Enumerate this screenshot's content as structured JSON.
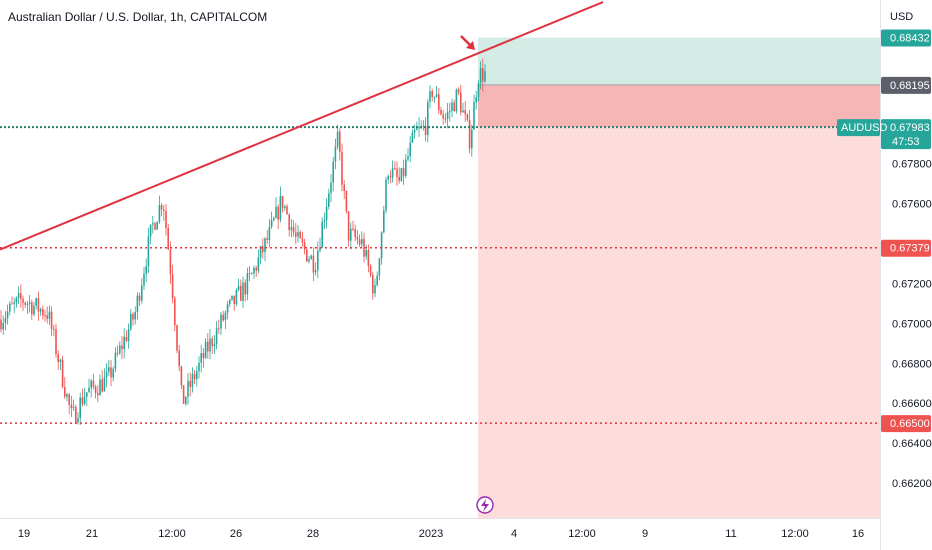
{
  "header": {
    "title": "Australian Dollar / U.S. Dollar, 1h, CAPITALCOM"
  },
  "colors": {
    "up": "#26a69a",
    "down": "#ef5350",
    "trendline": "#e0323f",
    "dotted_level": "#e0323f",
    "current_price_line": "#26806f",
    "profit_zone": "#d3ede6",
    "stop_zone": "#f7b6b6",
    "loss_zone": "#fddcdc",
    "flash_icon": "#9c27b0"
  },
  "chart_data": {
    "type": "candlestick",
    "currency_label": "USD",
    "symbol": "AUDUSD",
    "y_ticks": [
      "0.67800",
      "0.67600",
      "0.67200",
      "0.67000",
      "0.66800",
      "0.66600",
      "0.66400",
      "0.66200"
    ],
    "ylim": [
      0.6608,
      0.6853
    ],
    "x_ticks": [
      "19",
      "21",
      "12:00",
      "26",
      "28",
      "2023",
      "4",
      "12:00",
      "9",
      "11",
      "12:00",
      "16"
    ],
    "price_tags": [
      {
        "name": "target",
        "value": "0.68432",
        "color": "#26a69a"
      },
      {
        "name": "entry",
        "value": "0.68195",
        "color": "#5d606b"
      },
      {
        "name": "current",
        "value": "0.67983",
        "color": "#26a69a"
      },
      {
        "name": "level-upper",
        "value": "0.67379",
        "color": "#ef5350"
      },
      {
        "name": "level-lower",
        "value": "0.66500",
        "color": "#ef5350"
      }
    ],
    "countdown": "47:53",
    "horizontal_levels": [
      0.67983,
      0.67379,
      0.665
    ],
    "position": {
      "target": 0.68432,
      "entry": 0.68195,
      "stop_visual": 0.67983
    },
    "trendline": {
      "from": 0.6737,
      "to": 0.6861
    }
  }
}
